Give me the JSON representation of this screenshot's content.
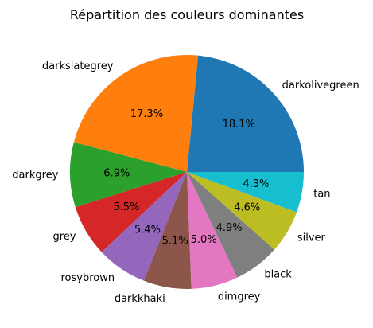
{
  "chart_data": {
    "type": "pie",
    "title": "Répartition des couleurs dominantes",
    "start_angle_deg": 0,
    "direction": "counterclockwise",
    "slices": [
      {
        "label": "darkolivegreen",
        "value": 18.1,
        "pct_label": "18.1%",
        "color": "#1f77b4"
      },
      {
        "label": "darkslategrey",
        "value": 17.3,
        "pct_label": "17.3%",
        "color": "#ff7f0e"
      },
      {
        "label": "darkgrey",
        "value": 6.9,
        "pct_label": "6.9%",
        "color": "#2ca02c"
      },
      {
        "label": "grey",
        "value": 5.5,
        "pct_label": "5.5%",
        "color": "#d62728"
      },
      {
        "label": "rosybrown",
        "value": 5.4,
        "pct_label": "5.4%",
        "color": "#9467bd"
      },
      {
        "label": "darkkhaki",
        "value": 5.1,
        "pct_label": "5.1%",
        "color": "#8c564b"
      },
      {
        "label": "dimgrey",
        "value": 5.0,
        "pct_label": "5.0%",
        "color": "#e377c2"
      },
      {
        "label": "black",
        "value": 4.9,
        "pct_label": "4.9%",
        "color": "#7f7f7f"
      },
      {
        "label": "silver",
        "value": 4.6,
        "pct_label": "4.6%",
        "color": "#bcbd22"
      },
      {
        "label": "tan",
        "value": 4.3,
        "pct_label": "4.3%",
        "color": "#17becf"
      }
    ]
  }
}
